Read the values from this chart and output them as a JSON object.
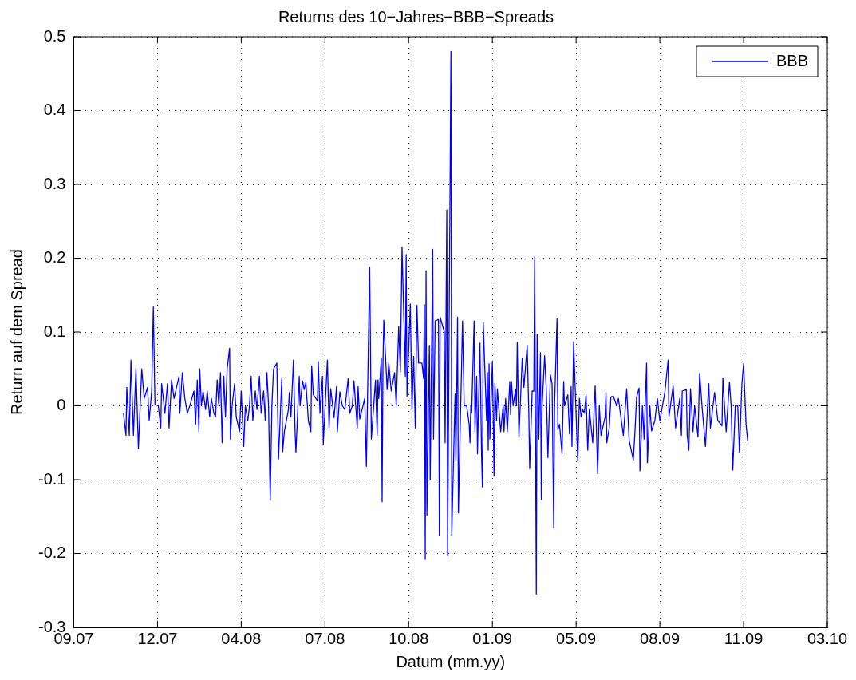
{
  "chart_data": {
    "type": "line",
    "title": "Returns des 10−Jahres−BBB−Spreads",
    "xlabel": "Datum (mm.yy)",
    "ylabel": "Return auf dem Spread",
    "xlim": [
      "2007-09-13",
      "2010-03-10"
    ],
    "xticks": [
      {
        "value": "2007-09-13",
        "label": "09.07"
      },
      {
        "value": "2007-12-23",
        "label": "12.07"
      },
      {
        "value": "2008-04-02",
        "label": "04.08"
      },
      {
        "value": "2008-07-12",
        "label": "07.08"
      },
      {
        "value": "2008-10-21",
        "label": "10.08"
      },
      {
        "value": "2009-01-30",
        "label": "01.09"
      },
      {
        "value": "2009-05-11",
        "label": "05.09"
      },
      {
        "value": "2009-08-20",
        "label": "08.09"
      },
      {
        "value": "2009-11-29",
        "label": "11.09"
      },
      {
        "value": "2010-03-10",
        "label": "03.10"
      }
    ],
    "ylim": [
      -0.3,
      0.5
    ],
    "yticks": [
      -0.3,
      -0.2,
      -0.1,
      0,
      0.1,
      0.2,
      0.3,
      0.4,
      0.5
    ],
    "grid": true,
    "legend": "top right",
    "marker": "none",
    "line_style": "solid",
    "x": [
      "2007-11-12",
      "2007-11-15",
      "2007-11-16",
      "2007-11-19",
      "2007-11-21",
      "2007-11-24",
      "2007-11-27",
      "2007-11-30",
      "2007-12-04",
      "2007-12-07",
      "2007-12-11",
      "2007-12-13",
      "2007-12-16",
      "2007-12-18",
      "2007-12-20",
      "2007-12-24",
      "2007-12-27",
      "2007-12-28",
      "2008-01-01",
      "2008-01-04",
      "2008-01-06",
      "2008-01-09",
      "2008-01-12",
      "2008-01-15",
      "2008-01-18",
      "2008-01-19",
      "2008-01-22",
      "2008-01-25",
      "2008-01-28",
      "2008-01-31",
      "2008-02-03",
      "2008-02-05",
      "2008-02-07",
      "2008-02-09",
      "2008-02-11",
      "2008-02-12",
      "2008-02-14",
      "2008-02-16",
      "2008-02-19",
      "2008-02-21",
      "2008-02-24",
      "2008-02-26",
      "2008-02-29",
      "2008-03-02",
      "2008-03-04",
      "2008-03-06",
      "2008-03-08",
      "2008-03-10",
      "2008-03-12",
      "2008-03-14",
      "2008-03-16",
      "2008-03-19",
      "2008-03-20",
      "2008-03-22",
      "2008-03-25",
      "2008-03-27",
      "2008-03-31",
      "2008-04-02",
      "2008-04-05",
      "2008-04-07",
      "2008-04-10",
      "2008-04-12",
      "2008-04-14",
      "2008-04-16",
      "2008-04-19",
      "2008-04-21",
      "2008-04-24",
      "2008-04-26",
      "2008-04-29",
      "2008-05-01",
      "2008-05-03",
      "2008-05-05",
      "2008-05-07",
      "2008-05-09",
      "2008-05-11",
      "2008-05-15",
      "2008-05-17",
      "2008-05-21",
      "2008-05-22",
      "2008-05-24",
      "2008-05-29",
      "2008-05-30",
      "2008-06-01",
      "2008-06-04",
      "2008-06-06",
      "2008-06-07",
      "2008-06-11",
      "2008-06-12",
      "2008-06-15",
      "2008-06-17",
      "2008-06-19",
      "2008-06-22",
      "2008-06-25",
      "2008-06-26",
      "2008-06-28",
      "2008-07-03",
      "2008-07-04",
      "2008-07-06",
      "2008-07-09",
      "2008-07-10",
      "2008-07-15",
      "2008-07-17",
      "2008-07-19",
      "2008-07-23",
      "2008-07-26",
      "2008-07-27",
      "2008-07-30",
      "2008-08-02",
      "2008-08-05",
      "2008-08-09",
      "2008-08-11",
      "2008-08-14",
      "2008-08-16",
      "2008-08-20",
      "2008-08-21",
      "2008-08-23",
      "2008-08-29",
      "2008-08-31",
      "2008-09-04",
      "2008-09-06",
      "2008-09-11",
      "2008-09-13",
      "2008-09-14",
      "2008-09-15",
      "2008-09-18",
      "2008-09-19",
      "2008-09-20",
      "2008-09-21",
      "2008-09-25",
      "2008-09-27",
      "2008-09-30",
      "2008-10-04",
      "2008-10-06",
      "2008-10-09",
      "2008-10-11",
      "2008-10-13",
      "2008-10-17",
      "2008-10-18",
      "2008-10-19",
      "2008-10-23",
      "2008-10-25",
      "2008-10-27",
      "2008-10-29",
      "2008-10-31",
      "2008-11-02",
      "2008-11-06",
      "2008-11-08",
      "2008-11-09",
      "2008-11-10",
      "2008-11-11",
      "2008-11-12",
      "2008-11-15",
      "2008-11-16",
      "2008-11-19",
      "2008-11-20",
      "2008-11-22",
      "2008-11-26",
      "2008-11-27",
      "2008-11-28",
      "2008-12-03",
      "2008-12-04",
      "2008-12-06",
      "2008-12-07",
      "2008-12-11",
      "2008-12-12",
      "2008-12-16",
      "2008-12-17",
      "2008-12-19",
      "2008-12-20",
      "2008-12-22",
      "2008-12-25",
      "2008-12-27",
      "2008-12-30",
      "2009-01-02",
      "2009-01-03",
      "2009-01-04",
      "2009-01-05",
      "2009-01-08",
      "2009-01-09",
      "2009-01-11",
      "2009-01-12",
      "2009-01-15",
      "2009-01-17",
      "2009-01-18",
      "2009-01-19",
      "2009-01-23",
      "2009-01-24",
      "2009-01-25",
      "2009-01-26",
      "2009-01-27",
      "2009-01-30",
      "2009-02-01",
      "2009-02-02",
      "2009-02-04",
      "2009-02-05",
      "2009-02-09",
      "2009-02-12",
      "2009-02-13",
      "2009-02-15",
      "2009-02-17",
      "2009-02-20",
      "2009-02-21",
      "2009-02-22",
      "2009-02-24",
      "2009-02-27",
      "2009-02-28",
      "2009-03-01",
      "2009-03-03",
      "2009-03-07",
      "2009-03-09",
      "2009-03-13",
      "2009-03-15",
      "2009-03-16",
      "2009-03-19",
      "2009-03-21",
      "2009-03-22",
      "2009-03-24",
      "2009-03-25",
      "2009-03-27",
      "2009-03-29",
      "2009-03-30",
      "2009-03-31",
      "2009-04-03",
      "2009-04-05",
      "2009-04-07",
      "2009-04-10",
      "2009-04-12",
      "2009-04-14",
      "2009-04-15",
      "2009-04-18",
      "2009-04-19",
      "2009-04-21",
      "2009-04-24",
      "2009-04-26",
      "2009-04-27",
      "2009-05-01",
      "2009-05-03",
      "2009-05-05",
      "2009-05-06",
      "2009-05-08",
      "2009-05-11",
      "2009-05-13",
      "2009-05-15",
      "2009-05-17",
      "2009-05-19",
      "2009-05-21",
      "2009-05-23",
      "2009-05-25",
      "2009-05-27",
      "2009-05-31",
      "2009-06-03",
      "2009-06-06",
      "2009-06-08",
      "2009-06-10",
      "2009-06-15",
      "2009-06-16",
      "2009-06-17",
      "2009-06-20",
      "2009-06-22",
      "2009-06-25",
      "2009-06-29",
      "2009-07-01",
      "2009-07-07",
      "2009-07-11",
      "2009-07-14",
      "2009-07-19",
      "2009-07-21",
      "2009-07-23",
      "2009-07-26",
      "2009-07-27",
      "2009-07-30",
      "2009-08-01",
      "2009-08-04",
      "2009-08-05",
      "2009-08-08",
      "2009-08-10",
      "2009-08-14",
      "2009-08-17",
      "2009-08-20",
      "2009-08-26",
      "2009-08-30",
      "2009-08-31",
      "2009-09-05",
      "2009-09-08",
      "2009-09-13",
      "2009-09-15",
      "2009-09-16",
      "2009-09-21",
      "2009-09-22",
      "2009-09-24",
      "2009-09-26",
      "2009-09-29",
      "2009-10-01",
      "2009-10-05",
      "2009-10-07",
      "2009-10-10",
      "2009-10-14",
      "2009-10-18",
      "2009-10-20",
      "2009-10-25",
      "2009-10-29",
      "2009-11-03",
      "2009-11-04",
      "2009-11-06",
      "2009-11-08",
      "2009-11-12",
      "2009-11-14",
      "2009-11-16",
      "2009-11-19",
      "2009-11-22",
      "2009-11-24",
      "2009-11-27",
      "2009-11-29",
      "2009-12-02",
      "2009-12-04"
    ],
    "series": [
      {
        "name": "BBB",
        "color": "#0000ff",
        "values": [
          -0.01,
          -0.04,
          0.025,
          -0.04,
          0.062,
          -0.04,
          0.05,
          -0.058,
          0.05,
          0.01,
          0.025,
          -0.02,
          0.02,
          0.134,
          0.002,
          0.0,
          -0.03,
          0.03,
          -0.01,
          0.03,
          -0.03,
          0.035,
          0.01,
          0.025,
          0.04,
          -0.01,
          0.045,
          0.01,
          -0.01,
          0.0,
          0.012,
          0.02,
          -0.025,
          0.035,
          -0.035,
          0.05,
          0.0,
          0.02,
          -0.005,
          0.02,
          -0.015,
          0.01,
          -0.01,
          -0.015,
          0.035,
          0.0,
          0.045,
          -0.05,
          0.04,
          -0.015,
          0.05,
          0.078,
          -0.045,
          0.0,
          0.03,
          -0.015,
          -0.035,
          0.02,
          -0.055,
          0.0,
          -0.02,
          0.0,
          0.04,
          -0.02,
          0.02,
          -0.005,
          0.04,
          -0.01,
          0.02,
          -0.02,
          0.045,
          0.0,
          -0.128,
          0.0,
          0.05,
          0.058,
          -0.072,
          0.038,
          -0.062,
          -0.035,
          -0.005,
          0.018,
          -0.015,
          0.062,
          -0.035,
          -0.063,
          0.04,
          0.0,
          0.034,
          0.022,
          0.032,
          -0.02,
          -0.035,
          0.054,
          0.015,
          0.007,
          0.06,
          -0.01,
          0.04,
          -0.052,
          0.062,
          -0.03,
          0.023,
          -0.016,
          0.026,
          -0.035,
          0.019,
          0.0,
          -0.005,
          0.037,
          -0.01,
          0.0,
          0.034,
          -0.03,
          0.026,
          -0.018,
          0.01,
          -0.082,
          0.188,
          -0.045,
          0.035,
          -0.04,
          0.035,
          0.01,
          0.065,
          -0.13,
          0.058,
          0.116,
          0.022,
          0.058,
          0.02,
          0.045,
          0.0,
          0.108,
          0.046,
          0.215,
          0.04,
          0.205,
          0.013,
          0.138,
          -0.005,
          0.067,
          -0.03,
          0.136,
          0.058,
          0.058,
          0.037,
          0.137,
          -0.208,
          0.183,
          -0.148,
          0.082,
          -0.1,
          0.212,
          -0.045,
          0.115,
          0.117,
          -0.176,
          0.12,
          0.1,
          -0.05,
          0.265,
          -0.203,
          0.48,
          -0.175,
          0.016,
          -0.075,
          0.12,
          -0.145,
          -0.04,
          0.115,
          0.0,
          0.0,
          -0.025,
          -0.05,
          0.0,
          -0.01,
          0.115,
          -0.035,
          0.04,
          -0.065,
          0.085,
          -0.07,
          -0.11,
          0.113,
          -0.02,
          0.045,
          -0.06,
          0.057,
          -0.045,
          0.06,
          -0.095,
          0.03,
          -0.02,
          0.023,
          -0.035,
          0.0,
          -0.035,
          0.01,
          -0.035,
          0.033,
          -0.012,
          0.033,
          0.0,
          0.022,
          0.0,
          0.086,
          -0.043,
          0.065,
          0.025,
          0.082,
          -0.013,
          -0.085,
          0.02,
          0.02,
          0.202,
          -0.255,
          0.097,
          -0.045,
          0.072,
          -0.127,
          0.0,
          0.068,
          0.023,
          -0.07,
          0.042,
          0.03,
          -0.165,
          0.0,
          0.118,
          -0.032,
          -0.025,
          -0.065,
          0.033,
          0.0,
          0.015,
          -0.038,
          0.026,
          -0.055,
          0.087,
          -0.012,
          -0.075,
          0.01,
          -0.015,
          -0.005,
          -0.01,
          0.015,
          -0.06,
          -0.005,
          -0.05,
          0.027,
          -0.092,
          0.0,
          -0.04,
          -0.015,
          0.018,
          -0.05,
          -0.03,
          0.012,
          0.013,
          0.0,
          0.01,
          -0.04,
          0.023,
          -0.047,
          -0.073,
          -0.035,
          0.012,
          0.024,
          -0.088,
          0.0,
          -0.045,
          0.058,
          -0.077,
          0.0,
          -0.034,
          -0.02,
          0.01,
          -0.02,
          0.018,
          0.062,
          -0.015,
          0.027,
          -0.03,
          0.01,
          -0.04,
          0.02,
          0.022,
          -0.04,
          -0.06,
          0.023,
          -0.035,
          0.0,
          -0.042,
          0.044,
          -0.002,
          -0.055,
          0.03,
          -0.03,
          0.018,
          -0.02,
          -0.027,
          0.038,
          0.0,
          -0.035,
          0.032,
          0.0,
          -0.087,
          0.0,
          0.0,
          -0.063,
          0.03,
          0.057,
          -0.025,
          -0.048
        ]
      }
    ]
  }
}
